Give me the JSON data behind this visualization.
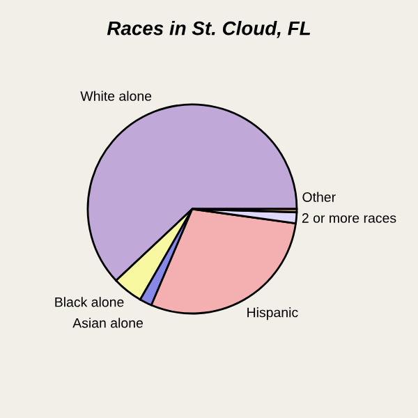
{
  "chart_data": {
    "type": "pie",
    "title": "Races in St. Cloud, FL",
    "categories": [
      "White alone",
      "Black alone",
      "Asian alone",
      "Hispanic",
      "2 or more races",
      "Other"
    ],
    "values": [
      62.0,
      4.7,
      1.9,
      29.2,
      1.7,
      0.5
    ],
    "colors": [
      "#c0a8d8",
      "#f8f8a0",
      "#8888e8",
      "#f4b0b0",
      "#e0d8f8",
      "#c8a060"
    ]
  }
}
